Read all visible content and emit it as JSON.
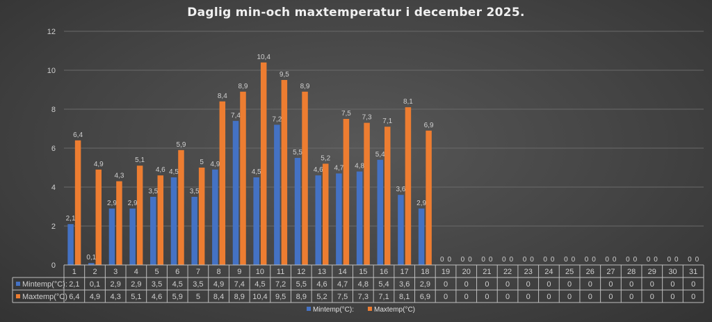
{
  "chart_data": {
    "type": "bar",
    "title": "Daglig min-och maxtemperatur i december 2025.",
    "xlabel": "",
    "ylabel": "",
    "ylim": [
      0,
      12
    ],
    "yticks": [
      0,
      2,
      4,
      6,
      8,
      10,
      12
    ],
    "grid": true,
    "legend": "bottom",
    "data_table": true,
    "categories": [
      "1",
      "2",
      "3",
      "4",
      "5",
      "6",
      "7",
      "8",
      "9",
      "10",
      "11",
      "12",
      "13",
      "14",
      "15",
      "16",
      "17",
      "18",
      "19",
      "20",
      "21",
      "22",
      "23",
      "24",
      "25",
      "26",
      "27",
      "28",
      "29",
      "30",
      "31"
    ],
    "series": [
      {
        "name": "Mintemp(°C):",
        "color": "#4472c4",
        "values": [
          2.1,
          0.1,
          2.9,
          2.9,
          3.5,
          4.5,
          3.5,
          4.9,
          7.4,
          4.5,
          7.2,
          5.5,
          4.6,
          4.7,
          4.8,
          5.4,
          3.6,
          2.9,
          0,
          0,
          0,
          0,
          0,
          0,
          0,
          0,
          0,
          0,
          0,
          0,
          0
        ],
        "labels": [
          "2,1",
          "0,1",
          "2,9",
          "2,9",
          "3,5",
          "4,5",
          "3,5",
          "4,9",
          "7,4",
          "4,5",
          "7,2",
          "5,5",
          "4,6",
          "4,7",
          "4,8",
          "5,4",
          "3,6",
          "2,9",
          "0",
          "0",
          "0",
          "0",
          "0",
          "0",
          "0",
          "0",
          "0",
          "0",
          "0",
          "0",
          "0"
        ]
      },
      {
        "name": "Maxtemp(°C)",
        "color": "#ed7d31",
        "values": [
          6.4,
          4.9,
          4.3,
          5.1,
          4.6,
          5.9,
          5,
          8.4,
          8.9,
          10.4,
          9.5,
          8.9,
          5.2,
          7.5,
          7.3,
          7.1,
          8.1,
          6.9,
          0,
          0,
          0,
          0,
          0,
          0,
          0,
          0,
          0,
          0,
          0,
          0,
          0
        ],
        "labels": [
          "6,4",
          "4,9",
          "4,3",
          "5,1",
          "4,6",
          "5,9",
          "5",
          "8,4",
          "8,9",
          "10,4",
          "9,5",
          "8,9",
          "5,2",
          "7,5",
          "7,3",
          "7,1",
          "8,1",
          "6,9",
          "0",
          "0",
          "0",
          "0",
          "0",
          "0",
          "0",
          "0",
          "0",
          "0",
          "0",
          "0",
          "0"
        ]
      }
    ]
  }
}
